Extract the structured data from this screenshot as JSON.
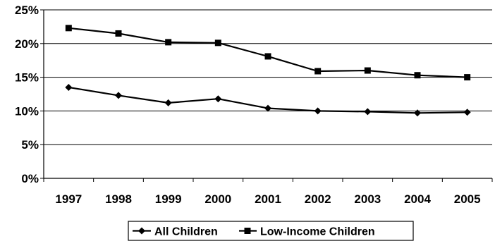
{
  "chart_data": {
    "type": "line",
    "title": "",
    "xlabel": "",
    "ylabel": "",
    "x": [
      "1997",
      "1998",
      "1999",
      "2000",
      "2001",
      "2002",
      "2003",
      "2004",
      "2005"
    ],
    "ylim": [
      0,
      25
    ],
    "y_ticks": [
      0,
      5,
      10,
      15,
      20,
      25
    ],
    "y_tick_labels": [
      "0%",
      "5%",
      "10%",
      "15%",
      "20%",
      "25%"
    ],
    "grid": true,
    "legend_position": "bottom",
    "series": [
      {
        "name": "All Children",
        "marker": "diamond",
        "color": "#000000",
        "values": [
          13.5,
          12.3,
          11.2,
          11.8,
          10.4,
          10.0,
          9.9,
          9.7,
          9.8
        ]
      },
      {
        "name": "Low-Income Children",
        "marker": "square",
        "color": "#000000",
        "values": [
          22.3,
          21.5,
          20.2,
          20.1,
          18.1,
          15.9,
          16.0,
          15.3,
          15.0
        ]
      }
    ]
  }
}
